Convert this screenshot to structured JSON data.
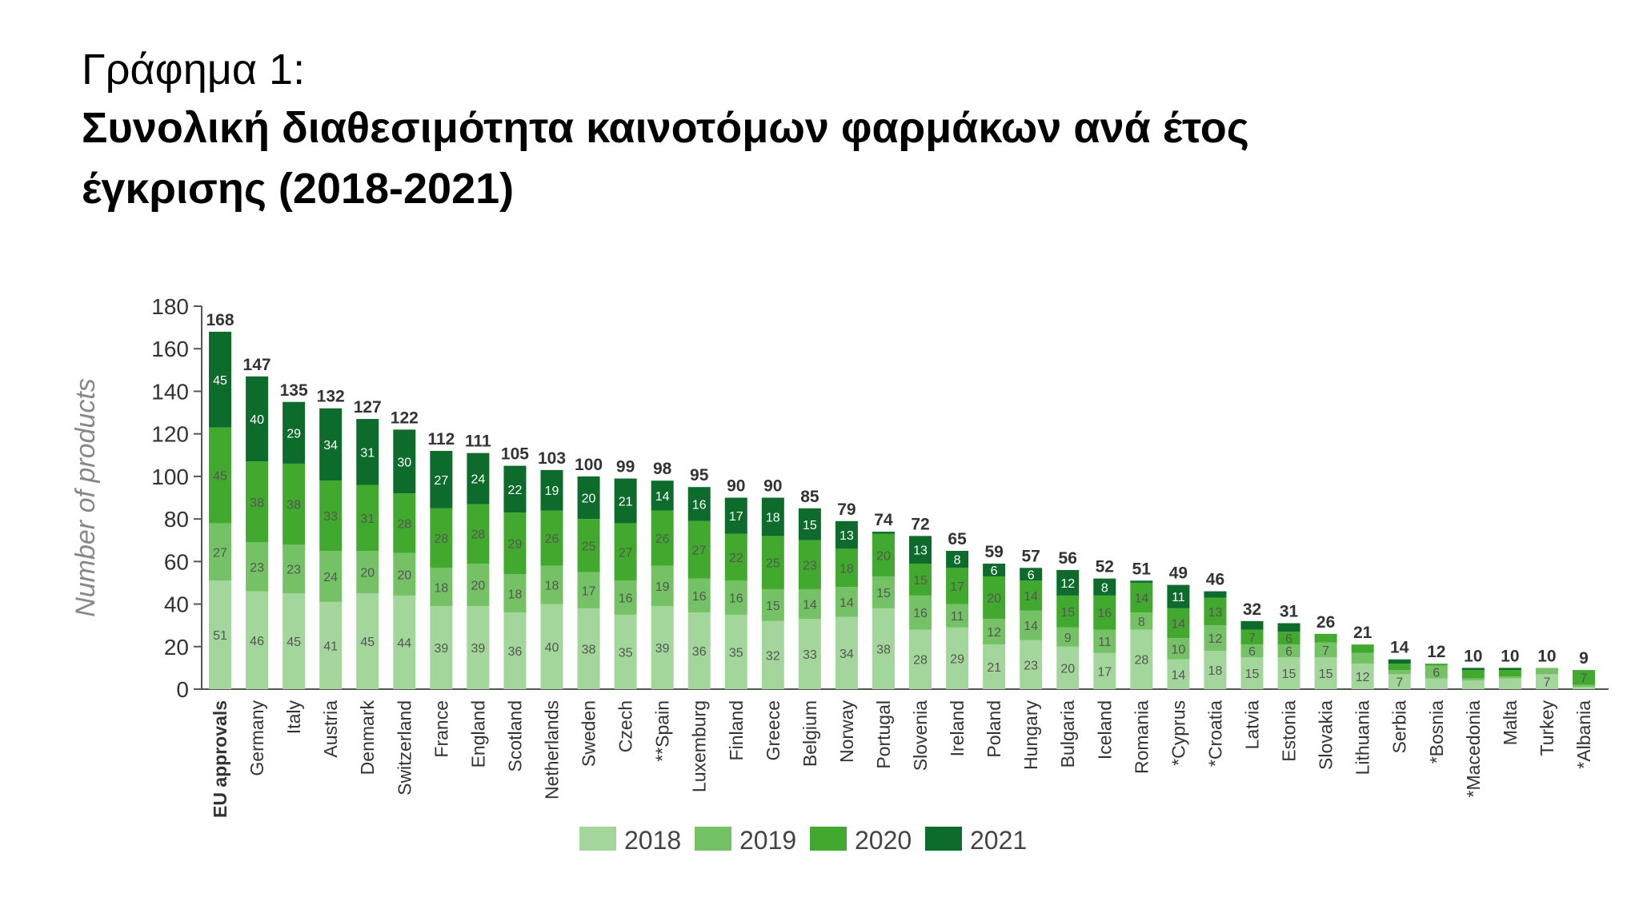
{
  "heading": {
    "label": "Γράφημα 1:",
    "title_line1": "Συνολική διαθεσιμότητα καινοτόμων φαρμάκων ανά έτος",
    "title_line2": "έγκρισης (2018-2021)"
  },
  "chart_data": {
    "type": "bar",
    "stacked": true,
    "ylabel": "Number of products",
    "ylim": [
      0,
      180
    ],
    "yticks": [
      0,
      20,
      40,
      60,
      80,
      100,
      120,
      140,
      160,
      180
    ],
    "grid": false,
    "legend_position": "bottom-center",
    "categories": [
      "EU approvals",
      "Germany",
      "Italy",
      "Austria",
      "Denmark",
      "Switzerland",
      "France",
      "England",
      "Scotland",
      "Netherlands",
      "Sweden",
      "Czech",
      "**Spain",
      "Luxemburg",
      "Finland",
      "Greece",
      "Belgium",
      "Norway",
      "Portugal",
      "Slovenia",
      "Ireland",
      "Poland",
      "Hungary",
      "Bulgaria",
      "Iceland",
      "Romania",
      "*Cyprus",
      "*Croatia",
      "Latvia",
      "Estonia",
      "Slovakia",
      "Lithuania",
      "Serbia",
      "*Bosnia",
      "*Macedonia",
      "Malta",
      "Turkey",
      "*Albania"
    ],
    "totals": [
      168,
      147,
      135,
      132,
      127,
      122,
      112,
      111,
      105,
      103,
      100,
      99,
      98,
      95,
      90,
      90,
      85,
      79,
      74,
      72,
      65,
      59,
      57,
      56,
      52,
      51,
      49,
      46,
      32,
      31,
      26,
      21,
      14,
      12,
      10,
      10,
      10,
      9
    ],
    "series": [
      {
        "name": "2018",
        "color": "#a3d69a",
        "values": [
          51,
          46,
          45,
          41,
          45,
          44,
          39,
          39,
          36,
          40,
          38,
          35,
          39,
          36,
          35,
          32,
          33,
          34,
          38,
          28,
          29,
          21,
          23,
          20,
          17,
          28,
          14,
          18,
          15,
          15,
          15,
          12,
          7,
          5,
          4,
          5,
          7,
          1
        ]
      },
      {
        "name": "2019",
        "color": "#74c265",
        "values": [
          27,
          23,
          23,
          24,
          20,
          20,
          18,
          20,
          18,
          18,
          17,
          16,
          19,
          16,
          16,
          15,
          14,
          14,
          15,
          16,
          11,
          12,
          14,
          9,
          11,
          8,
          10,
          12,
          6,
          6,
          7,
          5,
          2,
          6,
          1,
          1,
          3,
          1
        ]
      },
      {
        "name": "2020",
        "color": "#41aa2e",
        "values": [
          45,
          38,
          38,
          33,
          31,
          28,
          28,
          28,
          29,
          26,
          25,
          27,
          26,
          27,
          22,
          25,
          23,
          18,
          20,
          15,
          17,
          20,
          14,
          15,
          16,
          14,
          14,
          13,
          7,
          6,
          4,
          4,
          3,
          1,
          4,
          3,
          0,
          7
        ]
      },
      {
        "name": "2021",
        "color": "#0d6b2c",
        "values": [
          45,
          40,
          29,
          34,
          31,
          30,
          27,
          24,
          22,
          19,
          20,
          21,
          14,
          16,
          17,
          18,
          15,
          13,
          1,
          13,
          8,
          6,
          6,
          12,
          8,
          1,
          11,
          3,
          4,
          4,
          0,
          0,
          2,
          0,
          1,
          1,
          0,
          0
        ]
      }
    ]
  }
}
